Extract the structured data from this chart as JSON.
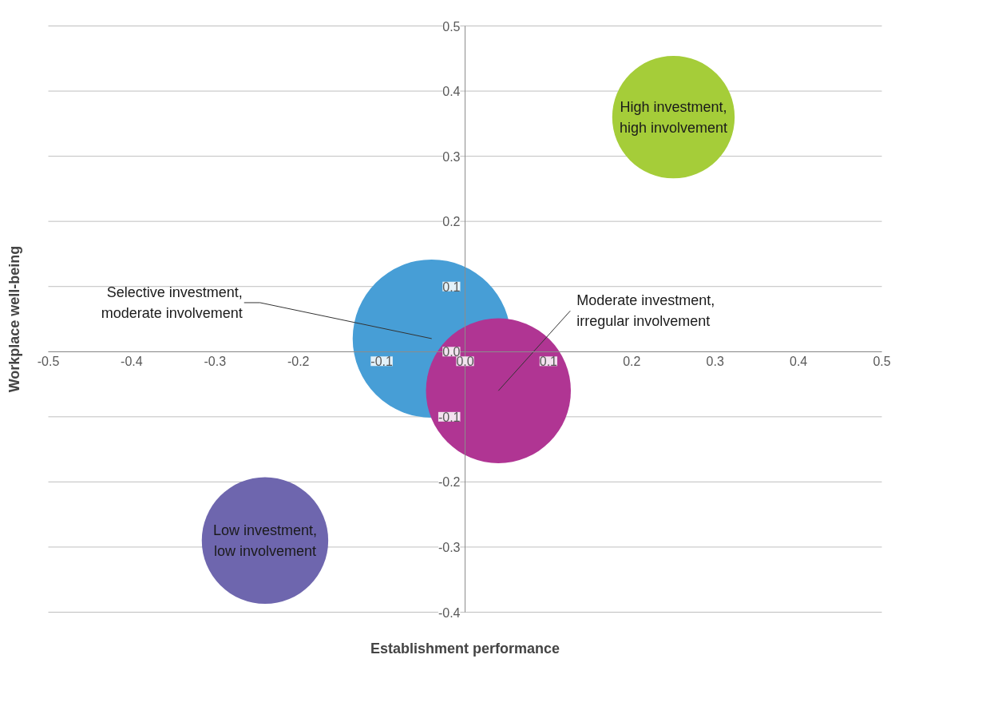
{
  "chart_data": {
    "type": "bubble",
    "xlabel": "Establishment performance",
    "ylabel": "Workplace well-being",
    "xlim": [
      -0.5,
      0.5
    ],
    "ylim": [
      -0.4,
      0.5
    ],
    "xticks": [
      {
        "value": -0.5,
        "label": "-0.5"
      },
      {
        "value": -0.4,
        "label": "-0.4"
      },
      {
        "value": -0.3,
        "label": "-0.3"
      },
      {
        "value": -0.2,
        "label": "-0.2"
      },
      {
        "value": -0.1,
        "label": "-0.1"
      },
      {
        "value": 0,
        "label": "0.0"
      },
      {
        "value": 0.1,
        "label": "0.1"
      },
      {
        "value": 0.2,
        "label": "0.2"
      },
      {
        "value": 0.3,
        "label": "0.3"
      },
      {
        "value": 0.4,
        "label": "0.4"
      },
      {
        "value": 0.5,
        "label": "0.5"
      }
    ],
    "yticks": [
      {
        "value": -0.4,
        "label": "-0.4"
      },
      {
        "value": -0.3,
        "label": "-0.3"
      },
      {
        "value": -0.2,
        "label": "-0.2"
      },
      {
        "value": -0.1,
        "label": "-0.1"
      },
      {
        "value": 0,
        "label": "0.0"
      },
      {
        "value": 0.1,
        "label": "0.1"
      },
      {
        "value": 0.2,
        "label": "0.2"
      },
      {
        "value": 0.3,
        "label": "0.3"
      },
      {
        "value": 0.4,
        "label": "0.4"
      },
      {
        "value": 0.5,
        "label": "0.5"
      }
    ],
    "grid": "y",
    "series": [
      {
        "name": "High investment,\nhigh involvement",
        "color": "#a5cd39",
        "x": [
          0.25
        ],
        "values": [
          0.36
        ],
        "sizes": [
          0.6
        ]
      },
      {
        "name": "Selective investment,\nmoderate involvement",
        "color": "#479ed6",
        "x": [
          -0.04
        ],
        "values": [
          0.02
        ],
        "sizes": [
          1
        ]
      },
      {
        "name": "Moderate investment,\nirregular involvement",
        "color": "#b03593",
        "x": [
          0.04
        ],
        "values": [
          -0.06
        ],
        "sizes": [
          0.84
        ]
      },
      {
        "name": "Low investment,\nlow involvement",
        "color": "#6e66ae",
        "x": [
          -0.24
        ],
        "values": [
          -0.29
        ],
        "sizes": [
          0.64
        ]
      }
    ]
  }
}
